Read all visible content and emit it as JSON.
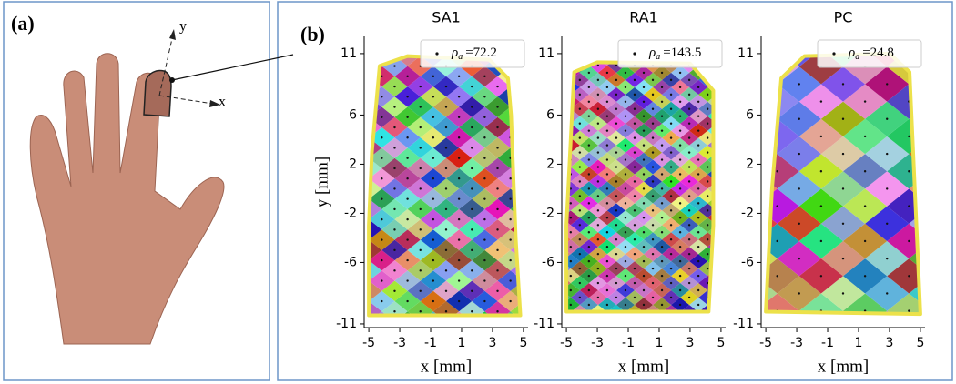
{
  "panel_labels": [
    "(a)",
    "(b)"
  ],
  "hand_axes": {
    "x": "x",
    "y": "y"
  },
  "chart_data": [
    {
      "type": "mosaic",
      "title": "SA1",
      "xlabel": "x [mm]",
      "ylabel": "y [mm]",
      "xlim": [
        -5.3,
        5.3
      ],
      "ylim": [
        -11.3,
        12.4
      ],
      "xticks": [
        -5,
        -3,
        -1,
        1,
        3,
        5
      ],
      "yticks": [
        -11,
        -6,
        -2,
        2,
        6,
        11
      ],
      "outline": {
        "x": [
          -4.3,
          -2.5,
          2.8,
          4.0,
          4.2,
          4.5,
          4.8,
          -5.0,
          -5.0,
          -4.8
        ],
        "y": [
          10.0,
          10.8,
          10.5,
          9.0,
          6.0,
          -4.0,
          -10.3,
          -10.3,
          -3.0,
          3.0
        ]
      },
      "annotation": {
        "symbol": "ρ",
        "subscript": "a",
        "value": 72.2,
        "label": "=72.2"
      }
    },
    {
      "type": "mosaic",
      "title": "RA1",
      "xlabel": "x [mm]",
      "xlim": [
        -5.3,
        5.3
      ],
      "ylim": [
        -11.3,
        12.4
      ],
      "xticks": [
        -5,
        -3,
        -1,
        1,
        3,
        5
      ],
      "yticks": [
        -11,
        -6,
        -2,
        2,
        6,
        11
      ],
      "outline": {
        "x": [
          -4.5,
          -3.0,
          3.0,
          4.5,
          4.5,
          4.2,
          -5.0,
          -5.0
        ],
        "y": [
          9.5,
          10.3,
          10.2,
          8.0,
          -3.0,
          -10.0,
          -10.0,
          -3.0
        ]
      },
      "annotation": {
        "symbol": "ρ",
        "subscript": "a",
        "value": 143.5,
        "label": "=143.5"
      }
    },
    {
      "type": "mosaic",
      "title": "PC",
      "xlabel": "x [mm]",
      "xlim": [
        -5.3,
        5.3
      ],
      "ylim": [
        -11.3,
        12.4
      ],
      "xticks": [
        -5,
        -3,
        -1,
        1,
        3,
        5
      ],
      "yticks": [
        -11,
        -6,
        -2,
        2,
        6,
        11
      ],
      "outline": {
        "x": [
          -4.0,
          -2.5,
          3.0,
          4.3,
          5.0,
          -5.0,
          -4.6
        ],
        "y": [
          9.0,
          10.8,
          11.0,
          9.5,
          -10.2,
          -10.0,
          0.0
        ]
      },
      "annotation": {
        "symbol": "ρ",
        "subscript": "a",
        "value": 24.8,
        "label": "=24.8"
      }
    }
  ]
}
